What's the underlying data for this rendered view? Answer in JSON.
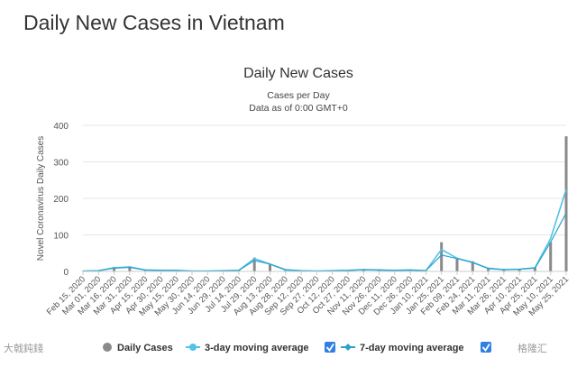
{
  "page": {
    "title": "Daily New Cases in Vietnam"
  },
  "colors": {
    "bars": "#8a8a8a",
    "ma3": "#4fc3e8",
    "ma7": "#2ba3c9",
    "checkbox": "#2f80e0",
    "grid": "#e6e6e6"
  },
  "chart_data": {
    "type": "bar",
    "title": "Daily New Cases",
    "subtitle": "Cases per Day",
    "subtitle2": "Data as of 0:00 GMT+0",
    "ylabel": "Novel Coronavirus Daily Cases",
    "ylim": [
      0,
      400
    ],
    "yticks": [
      0,
      100,
      200,
      300,
      400
    ],
    "categories": [
      "Feb 15, 2020",
      "Mar 01, 2020",
      "Mar 16, 2020",
      "Mar 31, 2020",
      "Apr 15, 2020",
      "Apr 30, 2020",
      "May 15, 2020",
      "May 30, 2020",
      "Jun 14, 2020",
      "Jun 29, 2020",
      "Jul 14, 2020",
      "Jul 29, 2020",
      "Aug 13, 2020",
      "Aug 28, 2020",
      "Sep 12, 2020",
      "Sep 27, 2020",
      "Oct 12, 2020",
      "Oct 27, 2020",
      "Nov 11, 2020",
      "Nov 26, 2020",
      "Dec 11, 2020",
      "Dec 26, 2020",
      "Jan 10, 2021",
      "Jan 25, 2021",
      "Feb 09, 2021",
      "Feb 24, 2021",
      "Mar 11, 2021",
      "Mar 26, 2021",
      "Apr 10, 2021",
      "Apr 25, 2021",
      "May 10, 2021",
      "May 25, 2021"
    ],
    "series": [
      {
        "name": "Daily Cases",
        "kind": "bar",
        "values": [
          1,
          2,
          12,
          14,
          4,
          3,
          4,
          1,
          1,
          2,
          4,
          38,
          20,
          4,
          2,
          1,
          2,
          4,
          6,
          4,
          3,
          5,
          2,
          80,
          35,
          28,
          8,
          4,
          6,
          12,
          80,
          370
        ]
      },
      {
        "name": "3-day moving average",
        "kind": "line",
        "values": [
          1,
          2,
          10,
          12,
          4,
          3,
          3,
          1,
          1,
          2,
          3,
          35,
          20,
          4,
          2,
          1,
          2,
          3,
          5,
          4,
          3,
          4,
          2,
          60,
          36,
          25,
          8,
          5,
          6,
          10,
          90,
          225
        ]
      },
      {
        "name": "7-day moving average",
        "kind": "line",
        "values": [
          1,
          2,
          9,
          11,
          4,
          3,
          3,
          1,
          1,
          2,
          3,
          30,
          20,
          5,
          2,
          1,
          2,
          3,
          5,
          4,
          3,
          4,
          2,
          45,
          35,
          24,
          9,
          5,
          6,
          9,
          80,
          160
        ]
      }
    ],
    "legend": {
      "position": "bottom",
      "items": [
        {
          "label": "Daily Cases",
          "checked": false
        },
        {
          "label": "3-day moving average",
          "checked": true
        },
        {
          "label": "7-day moving average",
          "checked": true
        }
      ]
    }
  },
  "watermarks": {
    "left": "大戟鈍錢",
    "right": "格隆汇"
  }
}
